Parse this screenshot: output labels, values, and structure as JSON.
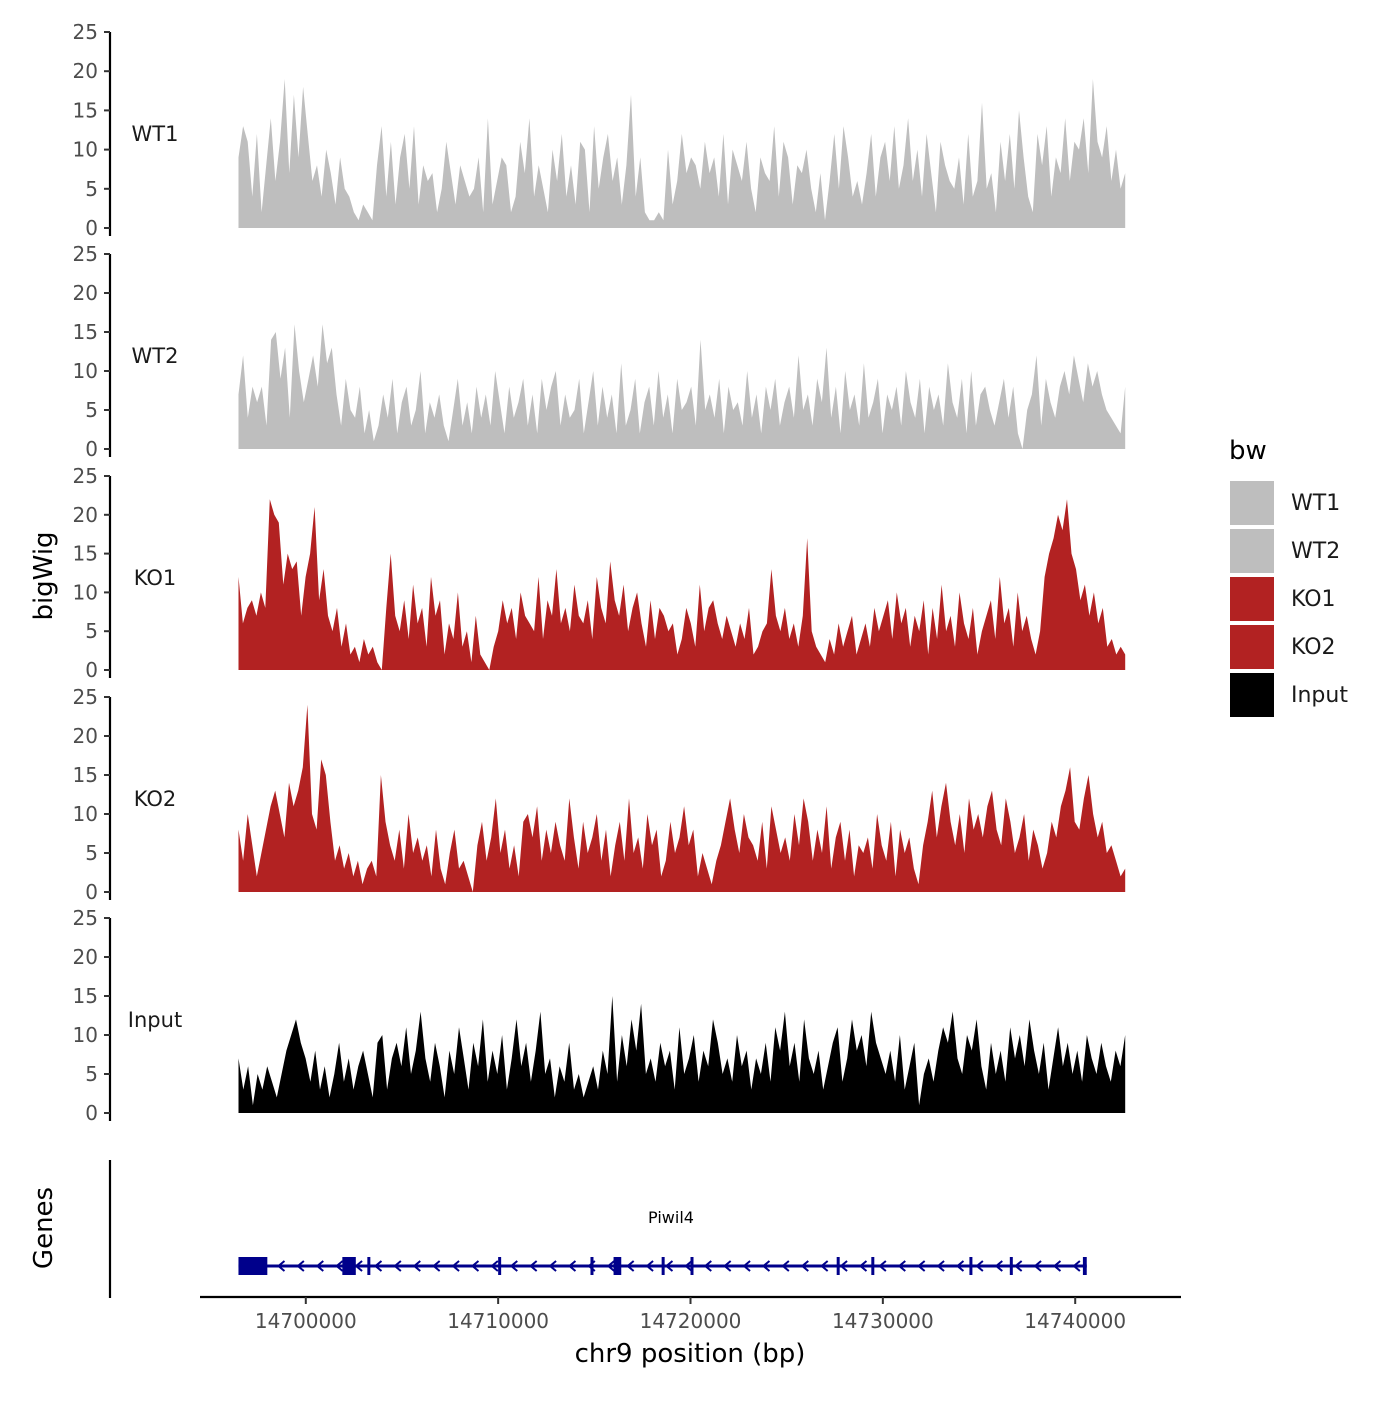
{
  "chart_data": {
    "type": "area",
    "ylabel": "bigWig",
    "xlabel": "chr9 position (bp)",
    "ylim": [
      0,
      25
    ],
    "y_ticks": [
      0,
      5,
      10,
      15,
      20,
      25
    ],
    "xlim": [
      14694500,
      14745500
    ],
    "x_ticks": [
      14700000,
      14710000,
      14720000,
      14730000,
      14740000
    ],
    "x_tick_labels": [
      "14700000",
      "14710000",
      "14720000",
      "14730000",
      "14740000"
    ],
    "data_x_range": [
      14696500,
      14742600
    ],
    "legend": {
      "title": "bw",
      "position": "right",
      "entries": [
        {
          "label": "WT1",
          "color": "#bebebe"
        },
        {
          "label": "WT2",
          "color": "#bebebe"
        },
        {
          "label": "KO1",
          "color": "#b22222"
        },
        {
          "label": "KO2",
          "color": "#b22222"
        },
        {
          "label": "Input",
          "color": "#000000"
        }
      ]
    },
    "series": [
      {
        "name": "WT1",
        "color": "#bebebe",
        "values": [
          9,
          13,
          11,
          4,
          12,
          2,
          8,
          14,
          6,
          11,
          19,
          7,
          17,
          9,
          18,
          12,
          6,
          8,
          4,
          10,
          7,
          3,
          9,
          5,
          4,
          2,
          1,
          3,
          2,
          1,
          8,
          13,
          4,
          11,
          3,
          9,
          12,
          5,
          13,
          3,
          8,
          6,
          7,
          2,
          5,
          11,
          7,
          3,
          8,
          6,
          4,
          5,
          9,
          2,
          14,
          3,
          6,
          9,
          8,
          2,
          4,
          11,
          7,
          14,
          4,
          8,
          5,
          2,
          10,
          6,
          12,
          4,
          8,
          3,
          11,
          10,
          2,
          13,
          5,
          9,
          12,
          6,
          9,
          3,
          8,
          17,
          4,
          9,
          2,
          1,
          1,
          2,
          1,
          10,
          3,
          6,
          12,
          7,
          9,
          8,
          5,
          11,
          7,
          9,
          4,
          12,
          3,
          10,
          8,
          6,
          11,
          5,
          2,
          9,
          7,
          6,
          13,
          4,
          11,
          9,
          3,
          8,
          7,
          10,
          5,
          2,
          7,
          1,
          6,
          12,
          5,
          13,
          9,
          4,
          6,
          3,
          7,
          12,
          4,
          9,
          11,
          6,
          13,
          5,
          8,
          14,
          6,
          10,
          4,
          12,
          7,
          2,
          11,
          8,
          6,
          5,
          9,
          3,
          12,
          4,
          6,
          16,
          5,
          7,
          2,
          11,
          6,
          12,
          5,
          15,
          9,
          4,
          2,
          12,
          8,
          13,
          4,
          9,
          7,
          14,
          6,
          11,
          10,
          14,
          7,
          19,
          11,
          9,
          13,
          6,
          10,
          5,
          7
        ]
      },
      {
        "name": "WT2",
        "color": "#bebebe",
        "values": [
          7,
          12,
          4,
          8,
          6,
          8,
          3,
          14,
          15,
          9,
          13,
          4,
          16,
          10,
          6,
          9,
          12,
          8,
          16,
          11,
          13,
          7,
          3,
          9,
          5,
          4,
          8,
          2,
          5,
          1,
          3,
          7,
          4,
          9,
          2,
          6,
          8,
          3,
          5,
          10,
          2,
          6,
          4,
          7,
          3,
          1,
          5,
          9,
          3,
          6,
          2,
          8,
          4,
          7,
          3,
          10,
          6,
          2,
          8,
          4,
          6,
          9,
          3,
          7,
          2,
          9,
          5,
          8,
          10,
          3,
          7,
          4,
          5,
          9,
          2,
          6,
          10,
          3,
          8,
          4,
          7,
          2,
          11,
          3,
          5,
          9,
          2,
          6,
          8,
          3,
          10,
          4,
          7,
          2,
          9,
          5,
          6,
          8,
          3,
          14,
          5,
          7,
          4,
          9,
          2,
          8,
          5,
          6,
          3,
          10,
          4,
          7,
          2,
          8,
          5,
          9,
          3,
          6,
          8,
          4,
          12,
          5,
          7,
          3,
          9,
          6,
          13,
          4,
          8,
          2,
          10,
          5,
          7,
          3,
          11,
          4,
          6,
          9,
          2,
          7,
          5,
          8,
          3,
          10,
          6,
          4,
          9,
          2,
          8,
          5,
          7,
          3,
          11,
          6,
          4,
          9,
          2,
          10,
          3,
          7,
          8,
          5,
          3,
          6,
          9,
          4,
          8,
          2,
          0,
          5,
          7,
          12,
          3,
          9,
          6,
          4,
          8,
          10,
          7,
          12,
          9,
          6,
          11,
          8,
          10,
          7,
          5,
          4,
          3,
          2,
          8
        ]
      },
      {
        "name": "KO1",
        "color": "#b22222",
        "values": [
          12,
          6,
          8,
          9,
          7,
          10,
          8,
          22,
          20,
          19,
          11,
          15,
          13,
          14,
          7,
          12,
          15,
          21,
          9,
          13,
          7,
          5,
          8,
          3,
          6,
          2,
          3,
          1,
          4,
          2,
          3,
          1,
          0,
          8,
          15,
          7,
          5,
          9,
          4,
          11,
          6,
          8,
          3,
          12,
          7,
          9,
          2,
          6,
          4,
          10,
          3,
          5,
          1,
          7,
          2,
          1,
          0,
          3,
          5,
          9,
          6,
          8,
          4,
          10,
          7,
          6,
          5,
          12,
          4,
          9,
          7,
          13,
          6,
          8,
          5,
          11,
          7,
          6,
          9,
          4,
          12,
          8,
          6,
          14,
          9,
          7,
          11,
          5,
          8,
          10,
          6,
          3,
          9,
          4,
          8,
          7,
          5,
          6,
          2,
          4,
          8,
          6,
          3,
          11,
          5,
          8,
          9,
          6,
          4,
          7,
          5,
          3,
          6,
          4,
          8,
          2,
          3,
          5,
          6,
          13,
          7,
          5,
          8,
          4,
          6,
          3,
          7,
          17,
          5,
          3,
          2,
          1,
          4,
          2,
          6,
          3,
          5,
          7,
          2,
          4,
          6,
          3,
          8,
          5,
          7,
          9,
          4,
          10,
          6,
          8,
          3,
          7,
          5,
          9,
          2,
          8,
          4,
          11,
          5,
          7,
          3,
          10,
          6,
          4,
          8,
          2,
          5,
          7,
          9,
          4,
          12,
          6,
          8,
          3,
          10,
          5,
          7,
          4,
          2,
          5,
          12,
          15,
          17,
          20,
          18,
          22,
          15,
          13,
          9,
          11,
          7,
          10,
          6,
          8,
          3,
          4,
          2,
          3,
          2
        ]
      },
      {
        "name": "KO2",
        "color": "#b22222",
        "values": [
          8,
          4,
          10,
          6,
          2,
          5,
          8,
          11,
          13,
          10,
          7,
          14,
          11,
          13,
          16,
          24,
          10,
          8,
          17,
          15,
          9,
          4,
          6,
          3,
          5,
          2,
          4,
          1,
          3,
          4,
          2,
          15,
          9,
          6,
          4,
          8,
          3,
          10,
          5,
          7,
          4,
          6,
          2,
          8,
          3,
          1,
          5,
          8,
          3,
          4,
          2,
          0,
          6,
          9,
          4,
          7,
          12,
          5,
          8,
          3,
          6,
          2,
          9,
          10,
          7,
          11,
          4,
          8,
          5,
          9,
          6,
          4,
          12,
          7,
          3,
          9,
          5,
          7,
          10,
          4,
          8,
          2,
          6,
          9,
          4,
          12,
          5,
          7,
          3,
          10,
          6,
          8,
          2,
          4,
          9,
          5,
          7,
          11,
          6,
          8,
          2,
          5,
          3,
          1,
          4,
          6,
          9,
          12,
          8,
          5,
          10,
          7,
          6,
          4,
          9,
          3,
          11,
          8,
          5,
          7,
          4,
          10,
          6,
          12,
          9,
          4,
          8,
          5,
          11,
          3,
          7,
          9,
          4,
          8,
          2,
          6,
          5,
          7,
          3,
          10,
          6,
          4,
          9,
          2,
          8,
          5,
          7,
          3,
          1,
          6,
          9,
          13,
          7,
          11,
          14,
          9,
          6,
          10,
          5,
          12,
          8,
          10,
          7,
          11,
          13,
          8,
          6,
          12,
          9,
          5,
          7,
          10,
          4,
          8,
          6,
          3,
          5,
          9,
          7,
          11,
          13,
          16,
          9,
          8,
          12,
          15,
          10,
          7,
          9,
          5,
          6,
          4,
          2,
          3
        ]
      },
      {
        "name": "Input",
        "color": "#000000",
        "values": [
          7,
          3,
          6,
          1,
          5,
          3,
          6,
          4,
          2,
          5,
          8,
          10,
          12,
          9,
          7,
          4,
          8,
          3,
          6,
          2,
          5,
          9,
          4,
          7,
          3,
          6,
          8,
          5,
          2,
          9,
          10,
          3,
          7,
          9,
          6,
          11,
          5,
          8,
          13,
          7,
          4,
          9,
          6,
          2,
          8,
          5,
          11,
          7,
          3,
          9,
          6,
          12,
          4,
          8,
          5,
          10,
          3,
          7,
          12,
          6,
          9,
          4,
          8,
          13,
          5,
          7,
          2,
          6,
          4,
          9,
          3,
          5,
          2,
          4,
          6,
          3,
          8,
          5,
          15,
          4,
          10,
          6,
          12,
          8,
          14,
          5,
          7,
          4,
          9,
          6,
          8,
          3,
          11,
          5,
          7,
          10,
          4,
          8,
          6,
          12,
          9,
          5,
          7,
          4,
          10,
          6,
          8,
          3,
          7,
          5,
          9,
          4,
          11,
          8,
          13,
          6,
          9,
          4,
          12,
          7,
          5,
          8,
          3,
          6,
          9,
          11,
          4,
          7,
          12,
          8,
          10,
          6,
          13,
          9,
          7,
          5,
          8,
          4,
          10,
          3,
          6,
          9,
          1,
          5,
          7,
          4,
          8,
          11,
          9,
          13,
          7,
          5,
          10,
          8,
          12,
          6,
          3,
          9,
          5,
          8,
          4,
          11,
          7,
          10,
          6,
          12,
          8,
          5,
          9,
          3,
          7,
          11,
          6,
          9,
          5,
          8,
          4,
          10,
          7,
          5,
          9,
          6,
          4,
          8,
          6,
          10
        ]
      }
    ],
    "gene_track": {
      "label": "Genes",
      "gene_name": "Piwil4",
      "start": 14696500,
      "end": 14740600,
      "color": "#00008b",
      "exons": [
        [
          14696500,
          14698000
        ],
        [
          14701900,
          14702600
        ],
        [
          14703200,
          14703350
        ],
        [
          14710000,
          14710150
        ],
        [
          14714800,
          14714950
        ],
        [
          14716000,
          14716400
        ],
        [
          14718500,
          14718650
        ],
        [
          14720000,
          14720150
        ],
        [
          14727600,
          14727750
        ],
        [
          14729400,
          14729550
        ],
        [
          14734500,
          14734650
        ],
        [
          14736600,
          14736750
        ],
        [
          14740400,
          14740600
        ]
      ],
      "strand": "-"
    }
  }
}
